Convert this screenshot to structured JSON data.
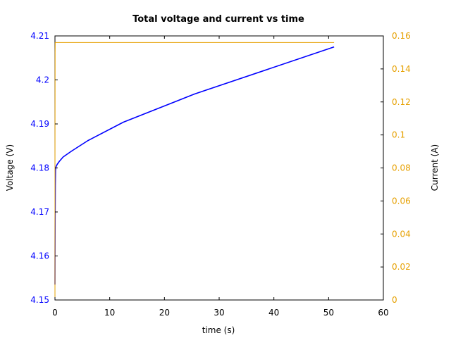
{
  "chart_data": {
    "type": "line",
    "title": "Total voltage and current vs time",
    "xlabel": "time (s)",
    "ylabel_left": "Voltage (V)",
    "ylabel_right": "Current (A)",
    "xlim": [
      0,
      60
    ],
    "ylim_left": [
      4.15,
      4.21
    ],
    "ylim_right": [
      0,
      0.16
    ],
    "x_ticks": [
      "0",
      "10",
      "20",
      "30",
      "40",
      "50",
      "60"
    ],
    "y_left_ticks": [
      "4.15",
      "4.16",
      "4.17",
      "4.18",
      "4.19",
      "4.2",
      "4.21"
    ],
    "y_right_ticks": [
      "0",
      "0.02",
      "0.04",
      "0.06",
      "0.08",
      "0.1",
      "0.12",
      "0.14",
      "0.16"
    ],
    "grid": false,
    "series": [
      {
        "axis": "left",
        "color": "#0000ff",
        "x": [
          0.0,
          0.03,
          0.06,
          0.1,
          0.2,
          0.4,
          0.8,
          1.5,
          3.0,
          6.0,
          12.5,
          25.5,
          51.0
        ],
        "y": [
          4.1535,
          4.168,
          4.176,
          4.1795,
          4.1803,
          4.1808,
          4.1815,
          4.1825,
          4.1838,
          4.1862,
          4.1904,
          4.1968,
          4.2075
        ]
      },
      {
        "axis": "right",
        "color": "#e6a000",
        "x": [
          0.0,
          0.0,
          0.03,
          0.05,
          51.0
        ],
        "y": [
          0.0,
          0.08,
          0.15,
          0.156,
          0.156
        ]
      }
    ],
    "colors": {
      "voltage": "#0000ff",
      "current": "#e6a000",
      "axes": "#000000"
    }
  }
}
